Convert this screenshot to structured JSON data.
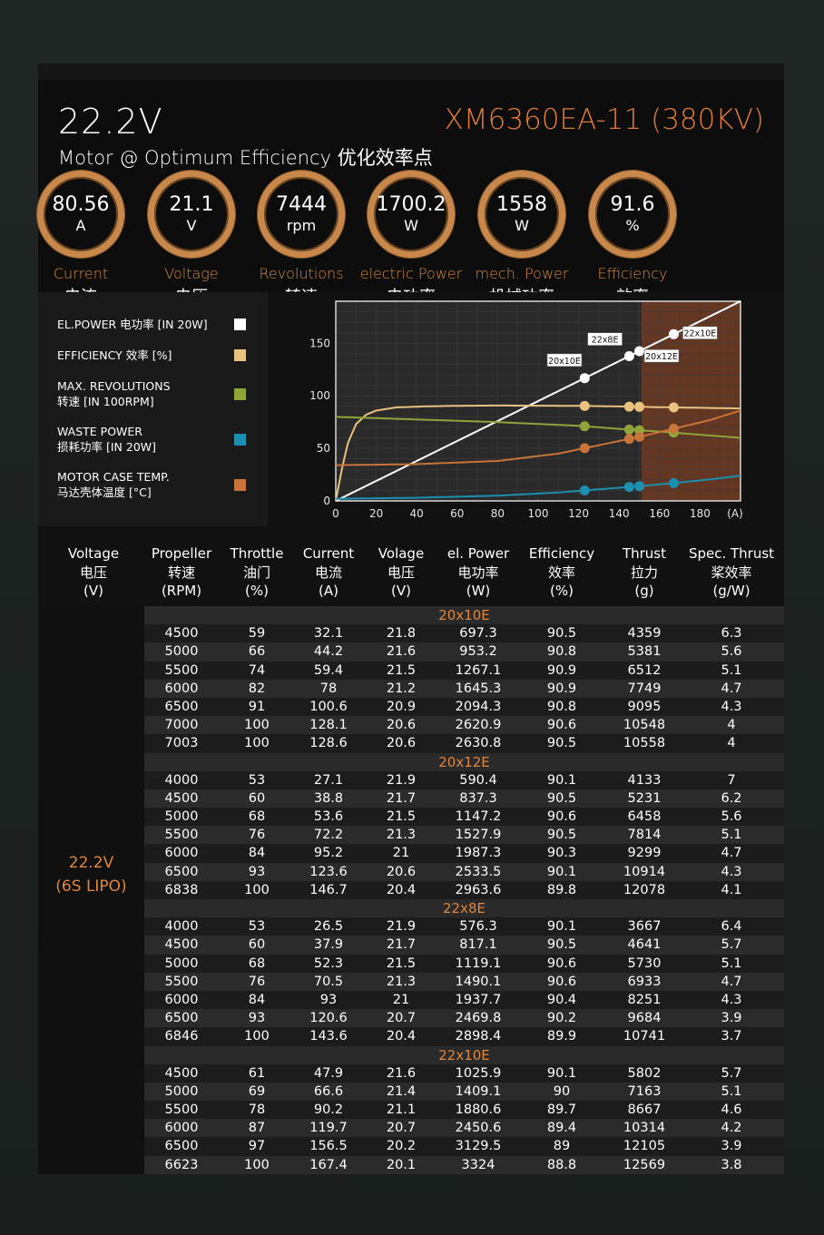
{
  "header": {
    "voltage": "22.2V",
    "subtitle": "Motor @ Optimum Efficiency  优化效率点",
    "model": "XM6360EA-11 (380KV)"
  },
  "gauges": [
    {
      "value": "80.56",
      "unit": "A",
      "en": "Current",
      "cn": "电流"
    },
    {
      "value": "21.1",
      "unit": "V",
      "en": "Voltage",
      "cn": "电压"
    },
    {
      "value": "7444",
      "unit": "rpm",
      "en": "Revolutions",
      "cn": "转速"
    },
    {
      "value": "1700.2",
      "unit": "W",
      "en": "electric Power",
      "cn": "电功率"
    },
    {
      "value": "1558",
      "unit": "W",
      "en": "mech. Power",
      "cn": "机械功率"
    },
    {
      "value": "91.6",
      "unit": "%",
      "en": "Efficiency",
      "cn": "效率"
    }
  ],
  "legend": [
    {
      "line1": "EL.POWER 电功率 [IN 20W]",
      "line2": "",
      "color": "#ffffff"
    },
    {
      "line1": "EFFICIENCY 效率 [%]",
      "line2": "",
      "color": "#e9c27f"
    },
    {
      "line1": "MAX. REVOLUTIONS",
      "line2": "转速 [IN 100RPM]",
      "color": "#8fa53a"
    },
    {
      "line1": "WASTE POWER",
      "line2": "损耗功率 [IN 20W]",
      "color": "#1c8fb0"
    },
    {
      "line1": "MOTOR CASE TEMP.",
      "line2": "马达壳体温度 [°C]",
      "color": "#c8743a"
    }
  ],
  "chart_data": {
    "type": "line",
    "x_ticks": [
      "0",
      "20",
      "40",
      "60",
      "80",
      "100",
      "120",
      "140",
      "160",
      "180",
      "(A)"
    ],
    "y_ticks": [
      "0",
      "50",
      "100",
      "150"
    ],
    "xlim": [
      0,
      200
    ],
    "ylim": [
      0,
      190
    ],
    "highlight_region": [
      151,
      200
    ],
    "series": [
      {
        "color": "#ffffff",
        "points": [
          [
            0,
            0
          ],
          [
            200,
            190
          ]
        ]
      },
      {
        "color": "#e9c27f",
        "points": [
          [
            0,
            0
          ],
          [
            3,
            30
          ],
          [
            6,
            55
          ],
          [
            10,
            73
          ],
          [
            15,
            82
          ],
          [
            20,
            86
          ],
          [
            30,
            89
          ],
          [
            45,
            90
          ],
          [
            60,
            90.5
          ],
          [
            80,
            90.8
          ],
          [
            100,
            90.6
          ],
          [
            120,
            90.5
          ],
          [
            140,
            89.9
          ],
          [
            160,
            89.2
          ],
          [
            180,
            88.6
          ],
          [
            200,
            88
          ]
        ]
      },
      {
        "color": "#8fa53a",
        "points": [
          [
            0,
            80
          ],
          [
            40,
            77.5
          ],
          [
            80,
            75
          ],
          [
            120,
            71.5
          ],
          [
            140,
            68.5
          ],
          [
            160,
            66
          ],
          [
            180,
            63
          ],
          [
            200,
            60
          ]
        ]
      },
      {
        "color": "#1c8fb0",
        "points": [
          [
            0,
            2
          ],
          [
            40,
            3
          ],
          [
            80,
            5
          ],
          [
            110,
            8
          ],
          [
            130,
            11
          ],
          [
            150,
            14
          ],
          [
            170,
            17.5
          ],
          [
            185,
            20.5
          ],
          [
            200,
            24
          ]
        ]
      },
      {
        "color": "#c8743a",
        "points": [
          [
            0,
            34
          ],
          [
            40,
            35
          ],
          [
            80,
            38
          ],
          [
            110,
            45
          ],
          [
            130,
            53
          ],
          [
            150,
            61
          ],
          [
            170,
            70
          ],
          [
            185,
            77
          ],
          [
            200,
            86
          ]
        ]
      }
    ],
    "markers": [
      {
        "x": 123,
        "label": "20x10E",
        "label_x": 113,
        "label_y": 134
      },
      {
        "x": 145,
        "label": "22x8E",
        "label_x": 133,
        "label_y": 154
      },
      {
        "x": 150,
        "label": "20x12E",
        "label_x": 161,
        "label_y": 138
      },
      {
        "x": 167,
        "label": "22x10E",
        "label_x": 180,
        "label_y": 160
      }
    ]
  },
  "table": {
    "headers": [
      {
        "l1": "Voltage",
        "l2": "电压",
        "l3": "(V)"
      },
      {
        "l1": "Propeller",
        "l2": "转速",
        "l3": "(RPM)"
      },
      {
        "l1": "Throttle",
        "l2": "油门",
        "l3": "(%)"
      },
      {
        "l1": "Current",
        "l2": "电流",
        "l3": "(A)"
      },
      {
        "l1": "Volage",
        "l2": "电压",
        "l3": "(V)"
      },
      {
        "l1": "el. Power",
        "l2": "电功率",
        "l3": "(W)"
      },
      {
        "l1": "Efficiency",
        "l2": "效率",
        "l3": "(%)"
      },
      {
        "l1": "Thrust",
        "l2": "拉力",
        "l3": "(g)"
      },
      {
        "l1": "Spec. Thrust",
        "l2": "桨效率",
        "l3": "(g/W)"
      }
    ],
    "side_label_1": "22.2V",
    "side_label_2": "(6S LIPO)",
    "sections": [
      {
        "name": "20x10E",
        "rows": [
          [
            "4500",
            "59",
            "32.1",
            "21.8",
            "697.3",
            "90.5",
            "4359",
            "6.3"
          ],
          [
            "5000",
            "66",
            "44.2",
            "21.6",
            "953.2",
            "90.8",
            "5381",
            "5.6"
          ],
          [
            "5500",
            "74",
            "59.4",
            "21.5",
            "1267.1",
            "90.9",
            "6512",
            "5.1"
          ],
          [
            "6000",
            "82",
            "78",
            "21.2",
            "1645.3",
            "90.9",
            "7749",
            "4.7"
          ],
          [
            "6500",
            "91",
            "100.6",
            "20.9",
            "2094.3",
            "90.8",
            "9095",
            "4.3"
          ],
          [
            "7000",
            "100",
            "128.1",
            "20.6",
            "2620.9",
            "90.6",
            "10548",
            "4"
          ],
          [
            "7003",
            "100",
            "128.6",
            "20.6",
            "2630.8",
            "90.5",
            "10558",
            "4"
          ]
        ]
      },
      {
        "name": "20x12E",
        "rows": [
          [
            "4000",
            "53",
            "27.1",
            "21.9",
            "590.4",
            "90.1",
            "4133",
            "7"
          ],
          [
            "4500",
            "60",
            "38.8",
            "21.7",
            "837.3",
            "90.5",
            "5231",
            "6.2"
          ],
          [
            "5000",
            "68",
            "53.6",
            "21.5",
            "1147.2",
            "90.6",
            "6458",
            "5.6"
          ],
          [
            "5500",
            "76",
            "72.2",
            "21.3",
            "1527.9",
            "90.5",
            "7814",
            "5.1"
          ],
          [
            "6000",
            "84",
            "95.2",
            "21",
            "1987.3",
            "90.3",
            "9299",
            "4.7"
          ],
          [
            "6500",
            "93",
            "123.6",
            "20.6",
            "2533.5",
            "90.1",
            "10914",
            "4.3"
          ],
          [
            "6838",
            "100",
            "146.7",
            "20.4",
            "2963.6",
            "89.8",
            "12078",
            "4.1"
          ]
        ]
      },
      {
        "name": "22x8E",
        "rows": [
          [
            "4000",
            "53",
            "26.5",
            "21.9",
            "576.3",
            "90.1",
            "3667",
            "6.4"
          ],
          [
            "4500",
            "60",
            "37.9",
            "21.7",
            "817.1",
            "90.5",
            "4641",
            "5.7"
          ],
          [
            "5000",
            "68",
            "52.3",
            "21.5",
            "1119.1",
            "90.6",
            "5730",
            "5.1"
          ],
          [
            "5500",
            "76",
            "70.5",
            "21.3",
            "1490.1",
            "90.6",
            "6933",
            "4.7"
          ],
          [
            "6000",
            "84",
            "93",
            "21",
            "1937.7",
            "90.4",
            "8251",
            "4.3"
          ],
          [
            "6500",
            "93",
            "120.6",
            "20.7",
            "2469.8",
            "90.2",
            "9684",
            "3.9"
          ],
          [
            "6846",
            "100",
            "143.6",
            "20.4",
            "2898.4",
            "89.9",
            "10741",
            "3.7"
          ]
        ]
      },
      {
        "name": "22x10E",
        "rows": [
          [
            "4500",
            "61",
            "47.9",
            "21.6",
            "1025.9",
            "90.1",
            "5802",
            "5.7"
          ],
          [
            "5000",
            "69",
            "66.6",
            "21.4",
            "1409.1",
            "90",
            "7163",
            "5.1"
          ],
          [
            "5500",
            "78",
            "90.2",
            "21.1",
            "1880.6",
            "89.7",
            "8667",
            "4.6"
          ],
          [
            "6000",
            "87",
            "119.7",
            "20.7",
            "2450.6",
            "89.4",
            "10314",
            "4.2"
          ],
          [
            "6500",
            "97",
            "156.5",
            "20.2",
            "3129.5",
            "89",
            "12105",
            "3.9"
          ],
          [
            "6623",
            "100",
            "167.4",
            "20.1",
            "3324",
            "88.8",
            "12569",
            "3.8"
          ]
        ]
      }
    ]
  }
}
